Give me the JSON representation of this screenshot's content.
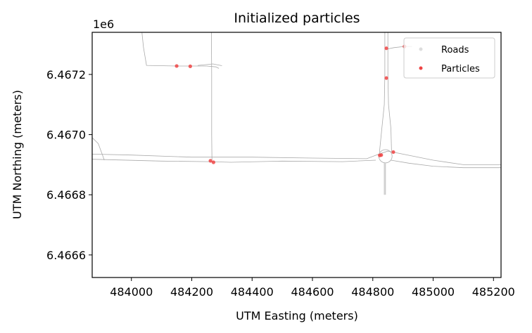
{
  "chart_data": {
    "type": "scatter",
    "title": "Initialized particles",
    "xlabel": "UTM Easting (meters)",
    "ylabel": "UTM Northing (meters)",
    "y_offset_label": "1e6",
    "xlim": [
      483870,
      485225
    ],
    "ylim": [
      6466525,
      6467340
    ],
    "xticks": [
      484000,
      484200,
      484400,
      484600,
      484800,
      485000,
      485200
    ],
    "xtick_labels": [
      "484000",
      "484200",
      "484400",
      "484600",
      "484800",
      "485000",
      "485200"
    ],
    "yticks": [
      6466600,
      6466800,
      6467000,
      6467200
    ],
    "ytick_labels": [
      "6.4666",
      "6.4668",
      "6.4670",
      "6.4672"
    ],
    "grid": false,
    "legend_position": "upper right",
    "legend": [
      {
        "label": "Roads",
        "color": "#aaaaaa"
      },
      {
        "label": "Particles",
        "color": "#ee4444"
      }
    ],
    "roads": [
      [
        [
          484035,
          6467340
        ],
        [
          484040,
          6467290
        ],
        [
          484050,
          6467230
        ],
        [
          484150,
          6467228
        ],
        [
          484200,
          6467228
        ],
        [
          484250,
          6467228
        ],
        [
          484280,
          6467225
        ],
        [
          484290,
          6467220
        ]
      ],
      [
        [
          484220,
          6467230
        ],
        [
          484270,
          6467235
        ],
        [
          484300,
          6467229
        ]
      ],
      [
        [
          484265,
          6467340
        ],
        [
          484266,
          6467200
        ],
        [
          484266,
          6467000
        ],
        [
          484267,
          6466915
        ]
      ],
      [
        [
          483870,
          6466990
        ],
        [
          483890,
          6466970
        ],
        [
          483905,
          6466930
        ],
        [
          483910,
          6466915
        ]
      ],
      [
        [
          483870,
          6466935
        ],
        [
          484000,
          6466932
        ],
        [
          484200,
          6466925
        ],
        [
          484400,
          6466925
        ],
        [
          484600,
          6466922
        ],
        [
          484780,
          6466920
        ],
        [
          484820,
          6466935
        ],
        [
          484850,
          6466945
        ],
        [
          484900,
          6466935
        ],
        [
          485000,
          6466915
        ],
        [
          485100,
          6466900
        ],
        [
          485225,
          6466900
        ]
      ],
      [
        [
          483870,
          6466918
        ],
        [
          484100,
          6466912
        ],
        [
          484260,
          6466910
        ],
        [
          484330,
          6466908
        ],
        [
          484500,
          6466912
        ],
        [
          484700,
          6466910
        ],
        [
          484810,
          6466915
        ]
      ],
      [
        [
          484860,
          6466915
        ],
        [
          484920,
          6466905
        ],
        [
          485000,
          6466895
        ],
        [
          485100,
          6466890
        ],
        [
          485225,
          6466890
        ]
      ],
      [
        [
          484840,
          6467340
        ],
        [
          484840,
          6467200
        ],
        [
          484838,
          6467100
        ],
        [
          484830,
          6467020
        ],
        [
          484822,
          6466940
        ]
      ],
      [
        [
          484850,
          6467340
        ],
        [
          484850,
          6467200
        ],
        [
          484852,
          6467100
        ],
        [
          484860,
          6467020
        ],
        [
          484862,
          6466945
        ]
      ],
      [
        [
          484838,
          6466905
        ],
        [
          484838,
          6466800
        ]
      ],
      [
        [
          484842,
          6466905
        ],
        [
          484842,
          6466800
        ]
      ],
      [
        [
          484850,
          6467285
        ],
        [
          484870,
          6467289
        ],
        [
          484905,
          6467293
        ],
        [
          484930,
          6467293
        ]
      ]
    ],
    "roundabout": {
      "cx": 484842,
      "cy": 6466928,
      "r": 22
    },
    "particles": [
      [
        484150,
        6467228
      ],
      [
        484195,
        6467227
      ],
      [
        484262,
        6466913
      ],
      [
        484272,
        6466908
      ],
      [
        484845,
        6467287
      ],
      [
        484845,
        6467188
      ],
      [
        484905,
        6467293
      ],
      [
        484823,
        6466931
      ],
      [
        484828,
        6466932
      ],
      [
        484868,
        6466942
      ]
    ]
  }
}
